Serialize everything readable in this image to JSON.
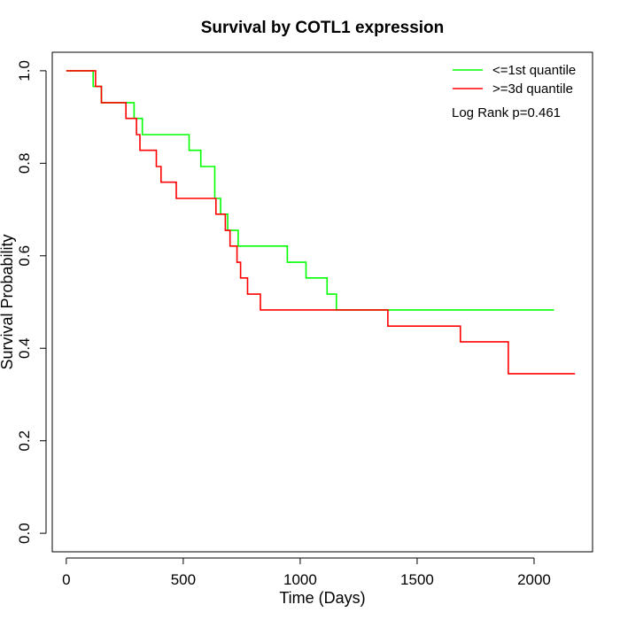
{
  "chart_data": {
    "type": "line",
    "title": "Survival by COTL1 expression",
    "xlabel": "Time (Days)",
    "ylabel": "Survival Probability",
    "xlim": [
      -60,
      2250
    ],
    "ylim": [
      -0.04,
      1.04
    ],
    "x_ticks": [
      0,
      500,
      1000,
      1500,
      2000
    ],
    "y_ticks": [
      0.0,
      0.2,
      0.4,
      0.6,
      0.8,
      1.0
    ],
    "x_tick_labels": [
      "0",
      "500",
      "1000",
      "1500",
      "2000"
    ],
    "y_tick_labels": [
      "0.0",
      "0.2",
      "0.4",
      "0.6",
      "0.8",
      "1.0"
    ],
    "grid": false,
    "legend_position": "top-right",
    "annotation": "Log Rank p=0.461",
    "series": [
      {
        "name": "<=1st quantile",
        "color": "#00ff00",
        "step": true,
        "x": [
          0,
          115,
          150,
          290,
          325,
          525,
          575,
          635,
          660,
          690,
          705,
          735,
          945,
          1025,
          1115,
          1155,
          2085
        ],
        "y": [
          1.0,
          0.966,
          0.931,
          0.897,
          0.862,
          0.828,
          0.793,
          0.724,
          0.69,
          0.655,
          0.655,
          0.621,
          0.586,
          0.552,
          0.517,
          0.483,
          0.483
        ]
      },
      {
        "name": ">=3d quantile",
        "color": "#ff0000",
        "step": true,
        "x": [
          0,
          125,
          150,
          255,
          300,
          315,
          385,
          405,
          470,
          640,
          680,
          700,
          730,
          745,
          775,
          830,
          1375,
          1685,
          1890,
          2175
        ],
        "y": [
          1.0,
          0.966,
          0.931,
          0.897,
          0.862,
          0.828,
          0.793,
          0.759,
          0.724,
          0.69,
          0.655,
          0.621,
          0.586,
          0.552,
          0.517,
          0.483,
          0.448,
          0.414,
          0.345,
          0.345
        ]
      }
    ]
  }
}
